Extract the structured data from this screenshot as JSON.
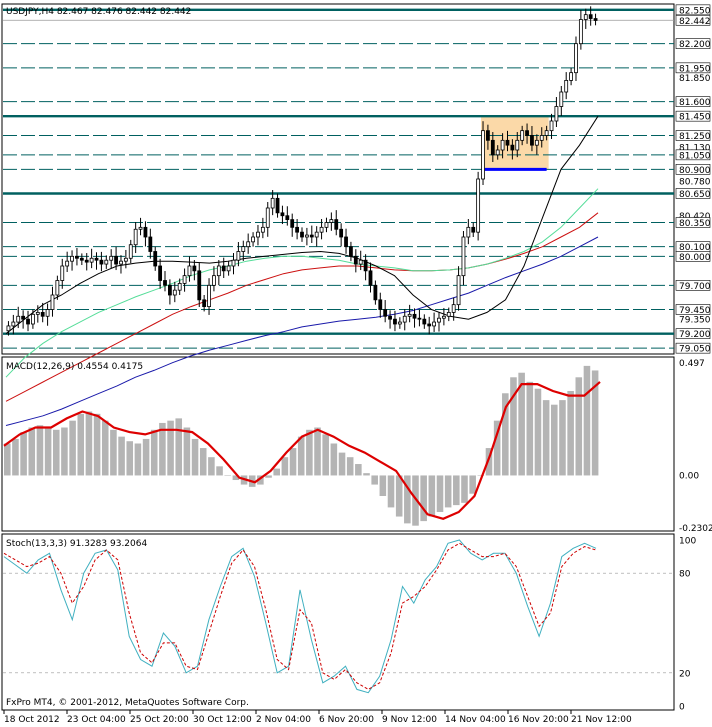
{
  "header": {
    "symbol_line": "USDJPY,H4  82.467 82.476 82.442 82.442",
    "macd_line": "MACD(12,26,9) 0.4554 0.4175",
    "stoch_line": "Stoch(13,3,3) 91.3283 93.2064",
    "copyright": "FxPro MT4, © 2001-2012, MetaQuotes Software Corp."
  },
  "colors": {
    "grid": "#006060",
    "candle": "#000000",
    "ma_black": "#000000",
    "ma_green": "#55dd99",
    "ma_red": "#cc1111",
    "ma_blue": "#1a1aaa",
    "macd_hist": "#b4b4b4",
    "macd_signal": "#dd0000",
    "stoch_main": "#40b0c0",
    "stoch_signal": "#cc0000",
    "box_fill": "#fbd9a8",
    "support_line": "#0000ff"
  },
  "price_labels": [
    "82.550",
    "82.442",
    "82.200",
    "81.950",
    "81.850",
    "81.600",
    "81.450",
    "81.250",
    "81.130",
    "81.050",
    "80.900",
    "80.780",
    "80.650",
    "80.420",
    "80.350",
    "80.100",
    "80.000",
    "79.700",
    "79.450",
    "79.350",
    "79.200",
    "79.050"
  ],
  "macd_labels": [
    "0.497",
    "0.00",
    "-0.2302"
  ],
  "stoch_labels": [
    "100",
    "80",
    "20",
    "0"
  ],
  "time_labels": [
    "18 Oct 2012",
    "23 Oct 04:00",
    "25 Oct 20:00",
    "30 Oct 12:00",
    "2 Nov 04:00",
    "6 Nov 20:00",
    "9 Nov 12:00",
    "14 Nov 04:00",
    "16 Nov 20:00",
    "21 Nov 12:00"
  ],
  "chart_data": [
    {
      "type": "candlestick",
      "title": "USDJPY,H4",
      "quote": {
        "open": 82.467,
        "high": 82.476,
        "low": 82.442,
        "close": 82.442
      },
      "ylim": [
        79.0,
        82.6
      ],
      "horizontal_levels": [
        82.55,
        82.2,
        81.95,
        81.6,
        81.45,
        81.25,
        81.05,
        80.9,
        80.65,
        80.35,
        80.1,
        80.0,
        79.7,
        79.45,
        79.2,
        79.05
      ],
      "heavy_levels": [
        82.55,
        81.45,
        80.65,
        79.2
      ],
      "consolidation_box": {
        "x_start_candle": 97,
        "x_end_candle": 110,
        "low": 80.9,
        "high": 81.45
      },
      "support_segment": {
        "x_start_candle": 97,
        "x_end_candle": 110,
        "level": 80.9
      },
      "closes": [
        79.28,
        79.32,
        79.38,
        79.35,
        79.3,
        79.4,
        79.42,
        79.38,
        79.45,
        79.6,
        79.75,
        79.9,
        79.95,
        80.0,
        79.98,
        79.96,
        79.94,
        79.98,
        79.96,
        79.92,
        79.96,
        80.0,
        79.92,
        79.95,
        79.98,
        80.12,
        80.28,
        80.3,
        80.2,
        80.05,
        79.9,
        79.75,
        79.7,
        79.6,
        79.65,
        79.72,
        79.8,
        79.9,
        79.85,
        79.55,
        79.48,
        79.7,
        79.8,
        79.9,
        79.85,
        79.9,
        79.96,
        80.05,
        80.1,
        80.15,
        80.2,
        80.25,
        80.3,
        80.5,
        80.6,
        80.45,
        80.42,
        80.38,
        80.3,
        80.25,
        80.2,
        80.22,
        80.2,
        80.25,
        80.3,
        80.35,
        80.38,
        80.28,
        80.2,
        80.1,
        80.0,
        79.92,
        79.96,
        79.85,
        79.7,
        79.55,
        79.45,
        79.38,
        79.35,
        79.3,
        79.32,
        79.38,
        79.4,
        79.36,
        79.35,
        79.3,
        79.28,
        79.32,
        79.36,
        79.38,
        79.42,
        79.5,
        79.8,
        80.2,
        80.3,
        80.25,
        80.8,
        81.3,
        81.2,
        81.05,
        81.1,
        81.2,
        81.15,
        81.1,
        81.2,
        81.3,
        81.25,
        81.15,
        81.2,
        81.25,
        81.3,
        81.4,
        81.55,
        81.7,
        81.82,
        81.9,
        82.2,
        82.45,
        82.5,
        82.46,
        82.44
      ],
      "ma_black": [
        79.2,
        79.35,
        79.5,
        79.6,
        79.72,
        79.82,
        79.9,
        79.93,
        79.95,
        79.95,
        79.94,
        79.93,
        79.95,
        79.98,
        80.0,
        80.02,
        80.04,
        80.05,
        80.03,
        79.98,
        79.9,
        79.8,
        79.6,
        79.45,
        79.38,
        79.35,
        79.42,
        79.55,
        79.9,
        80.4,
        80.9,
        81.15,
        81.45
      ],
      "ma_green": [
        78.75,
        78.95,
        79.1,
        79.22,
        79.32,
        79.42,
        79.5,
        79.58,
        79.65,
        79.72,
        79.8,
        79.86,
        79.9,
        79.95,
        79.98,
        80.0,
        80.0,
        79.98,
        79.96,
        79.92,
        79.9,
        79.88,
        79.85,
        79.85,
        79.86,
        79.88,
        79.92,
        79.98,
        80.05,
        80.15,
        80.3,
        80.5,
        80.7
      ],
      "ma_red": [
        78.5,
        78.6,
        78.7,
        78.8,
        78.9,
        79.0,
        79.1,
        79.2,
        79.3,
        79.4,
        79.48,
        79.55,
        79.62,
        79.7,
        79.76,
        79.82,
        79.86,
        79.88,
        79.9,
        79.9,
        79.88,
        79.86,
        79.85,
        79.85,
        79.86,
        79.88,
        79.92,
        79.97,
        80.03,
        80.1,
        80.2,
        80.3,
        80.45
      ],
      "ma_blue": [
        78.25,
        78.3,
        78.35,
        78.42,
        78.5,
        78.58,
        78.66,
        78.75,
        78.82,
        78.9,
        78.97,
        79.03,
        79.08,
        79.13,
        79.18,
        79.22,
        79.27,
        79.3,
        79.33,
        79.35,
        79.37,
        79.4,
        79.44,
        79.5,
        79.56,
        79.62,
        79.7,
        79.78,
        79.85,
        79.92,
        80.0,
        80.1,
        80.2
      ]
    },
    {
      "type": "bar",
      "title": "MACD(12,26,9)",
      "ylim": [
        -0.2302,
        0.497
      ],
      "histogram": [
        0.14,
        0.16,
        0.19,
        0.21,
        0.22,
        0.21,
        0.2,
        0.21,
        0.24,
        0.27,
        0.28,
        0.27,
        0.24,
        0.2,
        0.17,
        0.15,
        0.14,
        0.16,
        0.2,
        0.23,
        0.24,
        0.25,
        0.21,
        0.16,
        0.12,
        0.08,
        0.04,
        0.0,
        -0.02,
        -0.04,
        -0.05,
        -0.04,
        -0.01,
        0.03,
        0.08,
        0.12,
        0.17,
        0.2,
        0.21,
        0.18,
        0.14,
        0.1,
        0.08,
        0.05,
        0.01,
        -0.04,
        -0.09,
        -0.14,
        -0.18,
        -0.21,
        -0.22,
        -0.2,
        -0.18,
        -0.16,
        -0.14,
        -0.13,
        -0.12,
        -0.08,
        0.0,
        0.12,
        0.24,
        0.36,
        0.43,
        0.45,
        0.41,
        0.38,
        0.33,
        0.31,
        0.33,
        0.37,
        0.43,
        0.48,
        0.46
      ],
      "signal": [
        0.13,
        0.18,
        0.21,
        0.21,
        0.25,
        0.28,
        0.26,
        0.21,
        0.19,
        0.18,
        0.2,
        0.2,
        0.19,
        0.14,
        0.07,
        -0.01,
        -0.03,
        0.02,
        0.1,
        0.17,
        0.2,
        0.17,
        0.13,
        0.1,
        0.06,
        0.02,
        -0.08,
        -0.17,
        -0.19,
        -0.16,
        -0.09,
        0.09,
        0.3,
        0.4,
        0.4,
        0.37,
        0.35,
        0.35,
        0.41
      ]
    },
    {
      "type": "line",
      "title": "Stoch(13,3,3)",
      "ylim": [
        0,
        100
      ],
      "series": [
        {
          "name": "main",
          "values": [
            90,
            85,
            80,
            88,
            92,
            70,
            52,
            80,
            92,
            94,
            82,
            42,
            28,
            24,
            44,
            36,
            20,
            24,
            52,
            72,
            90,
            95,
            78,
            50,
            20,
            24,
            70,
            40,
            14,
            18,
            24,
            10,
            8,
            18,
            40,
            72,
            62,
            76,
            84,
            98,
            100,
            92,
            88,
            92,
            92,
            80,
            60,
            42,
            62,
            90,
            95,
            98,
            95
          ]
        },
        {
          "name": "signal",
          "values": [
            92,
            88,
            84,
            86,
            90,
            80,
            62,
            72,
            88,
            94,
            88,
            56,
            32,
            26,
            38,
            38,
            24,
            22,
            44,
            66,
            86,
            94,
            84,
            58,
            28,
            22,
            58,
            50,
            20,
            16,
            22,
            14,
            10,
            14,
            32,
            62,
            66,
            72,
            82,
            94,
            98,
            94,
            90,
            90,
            92,
            84,
            66,
            48,
            56,
            84,
            92,
            96,
            94
          ]
        }
      ]
    }
  ]
}
